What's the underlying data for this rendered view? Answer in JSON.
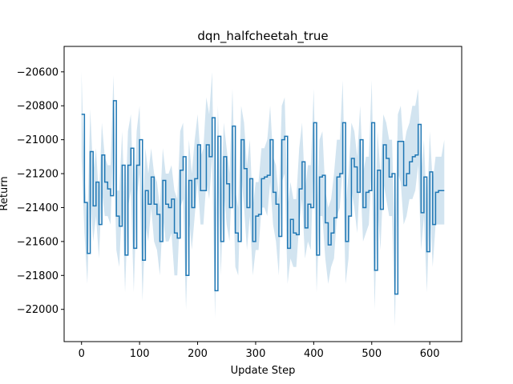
{
  "chart_data": {
    "type": "line",
    "title": "dqn_halfcheetah_true",
    "xlabel": "Update Step",
    "ylabel": "Return",
    "xlim": [
      -30,
      655
    ],
    "ylim": [
      -22190,
      -20450
    ],
    "xticks": [
      0,
      100,
      200,
      300,
      400,
      500,
      600
    ],
    "yticks": [
      -22000,
      -21800,
      -21600,
      -21400,
      -21200,
      -21000,
      -20800,
      -20600
    ],
    "ytick_labels": [
      "−22000",
      "−21800",
      "−21600",
      "−21400",
      "−21200",
      "−21000",
      "−20800",
      "−20600"
    ],
    "xtick_labels": [
      "0",
      "100",
      "200",
      "300",
      "400",
      "500",
      "600"
    ],
    "grid": false,
    "series": [
      {
        "color": "#1f77b4",
        "band_color": "#1f77b4",
        "band_opacity": 0.2,
        "step": true,
        "x": [
          0,
          5,
          10,
          15,
          20,
          25,
          30,
          35,
          40,
          45,
          50,
          55,
          60,
          65,
          70,
          75,
          80,
          85,
          90,
          95,
          100,
          105,
          110,
          115,
          120,
          125,
          130,
          135,
          140,
          145,
          150,
          155,
          160,
          165,
          170,
          175,
          180,
          185,
          190,
          195,
          200,
          205,
          210,
          215,
          220,
          225,
          230,
          235,
          240,
          245,
          250,
          255,
          260,
          265,
          270,
          275,
          280,
          285,
          290,
          295,
          300,
          305,
          310,
          315,
          320,
          325,
          330,
          335,
          340,
          345,
          350,
          355,
          360,
          365,
          370,
          375,
          380,
          385,
          390,
          395,
          400,
          405,
          410,
          415,
          420,
          425,
          430,
          435,
          440,
          445,
          450,
          455,
          460,
          465,
          470,
          475,
          480,
          485,
          490,
          495,
          500,
          505,
          510,
          515,
          520,
          525,
          530,
          535,
          540,
          545,
          550,
          555,
          560,
          565,
          570,
          575,
          580,
          585,
          590,
          595,
          600,
          605,
          610,
          615,
          620,
          625
        ],
        "y": [
          -20850,
          -21370,
          -21670,
          -21070,
          -21390,
          -21250,
          -21500,
          -21090,
          -21250,
          -21290,
          -21330,
          -20770,
          -21450,
          -21510,
          -21150,
          -21680,
          -21150,
          -21050,
          -21640,
          -21150,
          -21000,
          -21710,
          -21300,
          -21380,
          -21220,
          -21380,
          -21440,
          -21600,
          -21240,
          -21380,
          -21400,
          -21350,
          -21550,
          -21580,
          -21180,
          -21100,
          -21800,
          -21240,
          -21400,
          -21230,
          -21030,
          -21300,
          -21300,
          -21030,
          -21100,
          -20870,
          -21890,
          -20980,
          -21600,
          -21100,
          -21260,
          -21400,
          -20920,
          -21550,
          -21600,
          -21000,
          -21170,
          -21400,
          -21230,
          -21600,
          -21450,
          -21440,
          -21230,
          -21220,
          -21210,
          -21000,
          -21310,
          -21380,
          -21570,
          -21000,
          -20980,
          -21640,
          -21470,
          -21550,
          -21560,
          -21290,
          -21130,
          -21520,
          -21380,
          -21400,
          -20900,
          -21680,
          -21220,
          -21210,
          -21490,
          -21620,
          -21550,
          -21460,
          -21220,
          -21200,
          -20900,
          -21600,
          -21450,
          -21110,
          -21160,
          -21310,
          -21000,
          -21400,
          -21310,
          -21300,
          -20900,
          -21770,
          -21180,
          -21410,
          -21030,
          -21110,
          -21220,
          -21200,
          -21910,
          -21010,
          -21010,
          -21270,
          -21200,
          -21130,
          -21100,
          -21090,
          -20910,
          -21430,
          -21220,
          -21660,
          -21190,
          -21500,
          -21310,
          -21300,
          -21300,
          -21300
        ],
        "upper": [
          -20600,
          -21200,
          -21500,
          -20820,
          -21200,
          -21050,
          -21350,
          -20900,
          -21100,
          -21150,
          -21150,
          -20620,
          -21300,
          -21300,
          -20950,
          -21450,
          -20950,
          -20850,
          -21400,
          -20950,
          -20800,
          -21500,
          -21050,
          -21200,
          -21050,
          -21200,
          -21250,
          -21400,
          -21050,
          -21200,
          -21200,
          -21150,
          -21300,
          -21350,
          -20950,
          -20900,
          -21500,
          -21000,
          -21200,
          -21000,
          -20850,
          -21100,
          -21050,
          -20750,
          -20850,
          -20600,
          -21600,
          -20800,
          -21400,
          -20900,
          -21050,
          -21200,
          -20700,
          -21300,
          -21400,
          -20800,
          -20900,
          -21150,
          -21000,
          -21400,
          -21250,
          -21250,
          -21050,
          -21050,
          -21000,
          -20800,
          -21100,
          -21150,
          -21350,
          -20800,
          -20750,
          -21400,
          -21250,
          -21350,
          -21350,
          -21050,
          -20900,
          -21300,
          -21150,
          -21150,
          -20700,
          -21450,
          -21000,
          -20950,
          -21300,
          -21400,
          -21350,
          -21200,
          -21000,
          -21000,
          -20650,
          -21400,
          -21200,
          -20900,
          -20950,
          -21100,
          -20800,
          -21200,
          -21100,
          -21100,
          -20650,
          -21550,
          -20950,
          -21200,
          -20850,
          -20900,
          -21000,
          -21000,
          -21650,
          -20850,
          -20800,
          -21050,
          -20950,
          -20900,
          -20800,
          -20800,
          -20700,
          -21200,
          -21000,
          -21450,
          -20950,
          -21250,
          -21100,
          -21100,
          -21100,
          -21000
        ],
        "lower": [
          -21100,
          -21550,
          -21850,
          -21300,
          -21600,
          -21450,
          -21700,
          -21300,
          -21450,
          -21450,
          -21500,
          -20950,
          -21650,
          -21750,
          -21350,
          -21900,
          -21400,
          -21300,
          -21900,
          -21350,
          -21200,
          -21950,
          -21500,
          -21600,
          -21400,
          -21600,
          -21650,
          -21800,
          -21450,
          -21600,
          -21600,
          -21550,
          -21800,
          -21800,
          -21400,
          -21350,
          -22000,
          -21450,
          -21650,
          -21450,
          -21250,
          -21500,
          -21500,
          -21250,
          -21350,
          -21100,
          -22050,
          -21200,
          -21800,
          -21300,
          -21500,
          -21600,
          -21150,
          -21750,
          -21800,
          -21200,
          -21400,
          -21650,
          -21450,
          -21800,
          -21650,
          -21650,
          -21400,
          -21400,
          -21450,
          -21250,
          -21500,
          -21600,
          -21800,
          -21250,
          -21200,
          -21850,
          -21700,
          -21750,
          -21750,
          -21500,
          -21350,
          -21700,
          -21600,
          -21650,
          -21100,
          -21900,
          -21450,
          -21450,
          -21700,
          -21850,
          -21750,
          -21700,
          -21450,
          -21400,
          -21150,
          -21850,
          -21700,
          -21300,
          -21400,
          -21550,
          -21200,
          -21600,
          -21550,
          -21500,
          -21150,
          -22000,
          -21400,
          -21650,
          -21250,
          -21350,
          -21450,
          -21450,
          -22100,
          -21200,
          -21250,
          -21500,
          -21450,
          -21350,
          -21350,
          -21300,
          -21150,
          -21650,
          -21450,
          -21900,
          -21400,
          -21750,
          -21500,
          -21500,
          -21500,
          -21500
        ]
      }
    ]
  }
}
